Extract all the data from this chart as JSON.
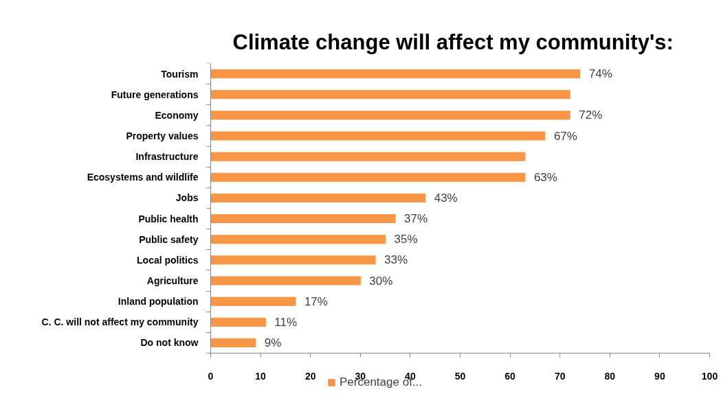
{
  "chart_data": {
    "type": "bar",
    "orientation": "horizontal",
    "title": "Climate change will affect my community's:",
    "categories": [
      "Tourism",
      "Future generations",
      "Economy",
      "Property values",
      "Infrastructure",
      "Ecosystems and wildlife",
      "Jobs",
      "Public health",
      "Public safety",
      "Local politics",
      "Agriculture",
      "Inland population",
      "C. C. will not affect my community",
      "Do not know"
    ],
    "series": [
      {
        "name": "Percentage of...",
        "color": "#f79646",
        "values": [
          74,
          72,
          72,
          67,
          63,
          63,
          43,
          37,
          35,
          33,
          30,
          17,
          11,
          9
        ],
        "value_labels": [
          "74%",
          null,
          "72%",
          "67%",
          null,
          "63%",
          "43%",
          "37%",
          "35%",
          "33%",
          "30%",
          "17%",
          "11%",
          "9%"
        ]
      }
    ],
    "xlim": [
      0,
      100
    ],
    "xticks": [
      0,
      10,
      20,
      30,
      40,
      50,
      60,
      70,
      80,
      90,
      100
    ],
    "grid": false,
    "legend": "bottom"
  }
}
